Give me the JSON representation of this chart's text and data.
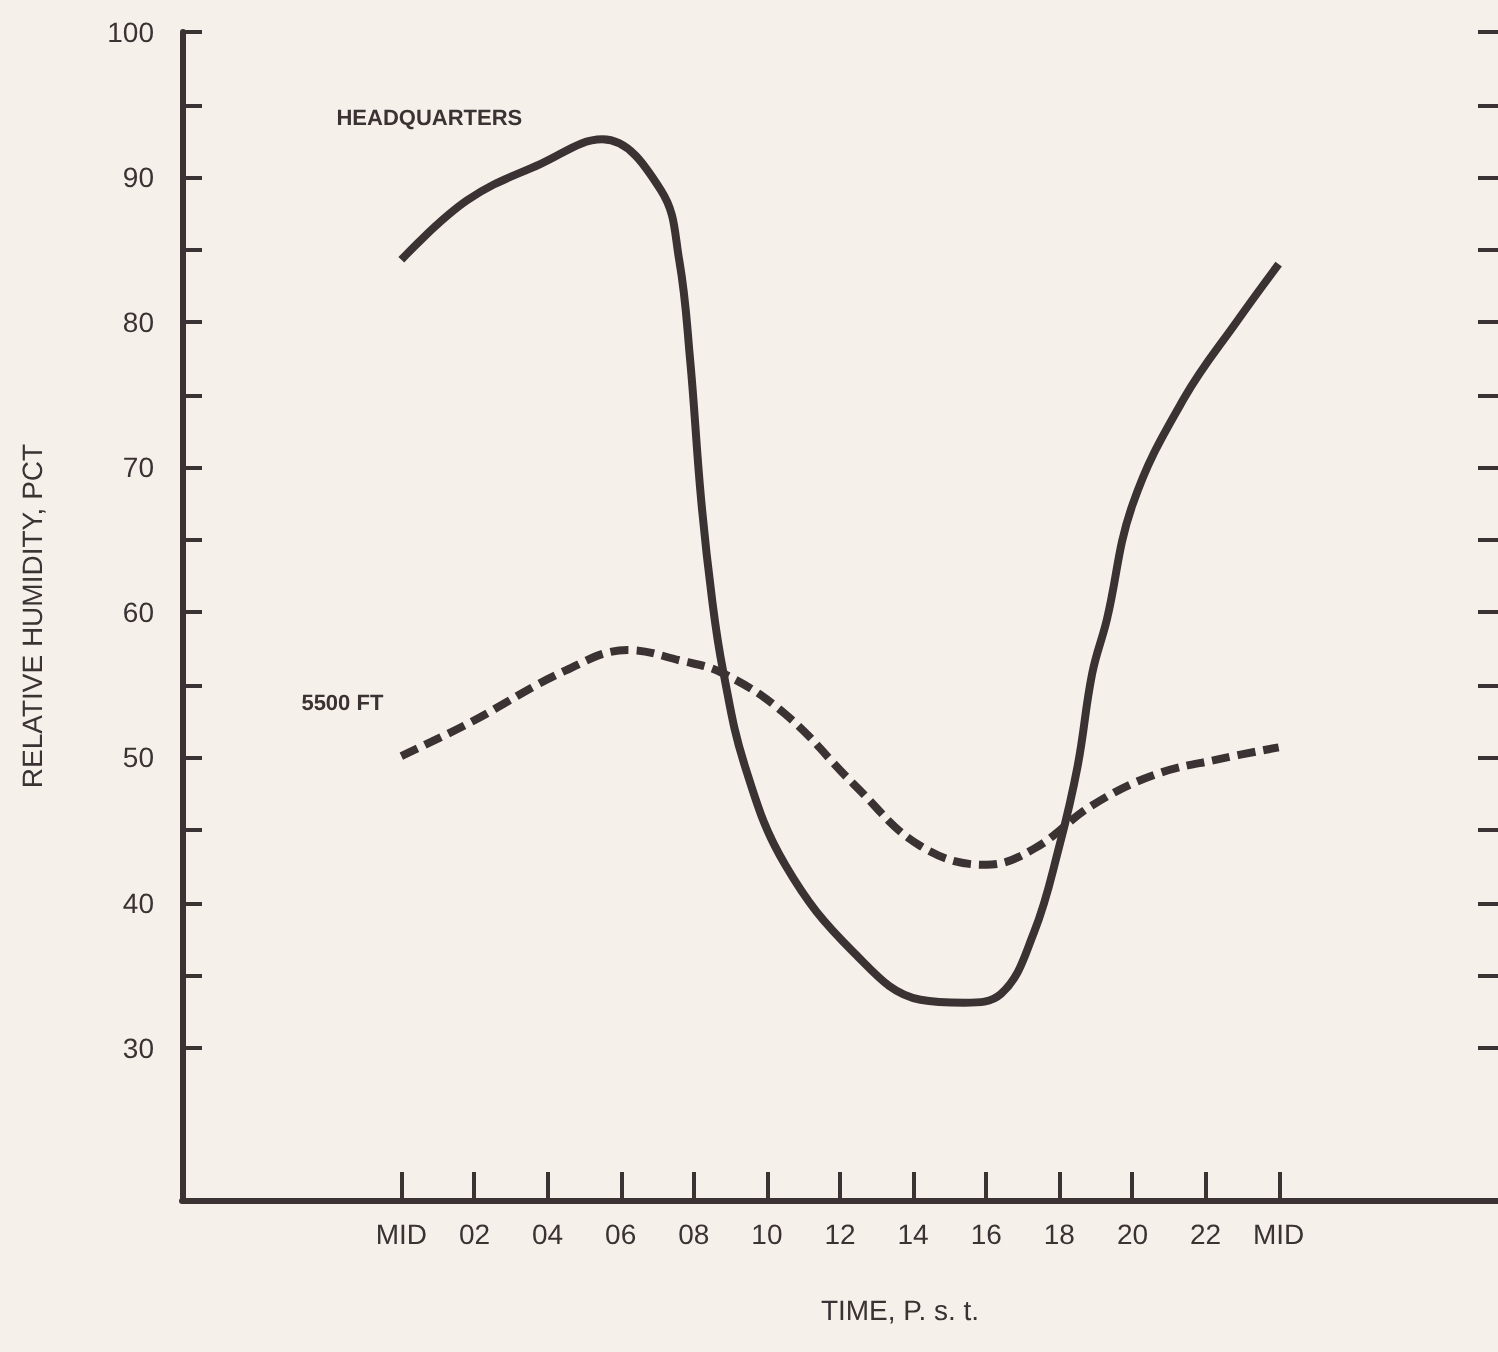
{
  "chart_data": {
    "type": "line",
    "xlabel": "TIME, P. s. t.",
    "ylabel": "RELATIVE HUMIDITY, PCT",
    "xlim": [
      -6,
      30
    ],
    "ylim": [
      19.5,
      100
    ],
    "xticks": [
      {
        "value": 0,
        "label": "MID"
      },
      {
        "value": 2,
        "label": "02"
      },
      {
        "value": 4,
        "label": "04"
      },
      {
        "value": 6,
        "label": "06"
      },
      {
        "value": 8,
        "label": "08"
      },
      {
        "value": 10,
        "label": "10"
      },
      {
        "value": 12,
        "label": "12"
      },
      {
        "value": 14,
        "label": "14"
      },
      {
        "value": 16,
        "label": "16"
      },
      {
        "value": 18,
        "label": "18"
      },
      {
        "value": 20,
        "label": "20"
      },
      {
        "value": 22,
        "label": "22"
      },
      {
        "value": 24,
        "label": "MID"
      }
    ],
    "yticks": [
      30,
      {
        "value": 35,
        "label": null
      },
      40,
      {
        "value": 45,
        "label": null
      },
      50,
      {
        "value": 55,
        "label": null
      },
      60,
      {
        "value": 65,
        "label": null
      },
      70,
      {
        "value": 75,
        "label": null
      },
      80,
      {
        "value": 85,
        "label": null
      },
      90,
      {
        "value": 95,
        "label": null
      },
      100
    ],
    "grid": false,
    "legend": false,
    "marker": "none",
    "series": [
      {
        "name": "HEADQUARTERS",
        "color": "#3a3233",
        "line_style": "solid",
        "x": [
          0,
          1.8,
          3.8,
          5.5,
          7.1,
          7.6,
          7.9,
          8.2,
          8.5,
          8.8,
          9.4,
          10.5,
          12.4,
          14.2,
          15.4,
          16.4,
          17.3,
          18,
          18.5,
          18.9,
          19.3,
          20,
          21.4,
          22.9,
          24
        ],
        "values": [
          84.3,
          88.4,
          90.9,
          92.6,
          89.1,
          84.3,
          77.4,
          67.8,
          60.9,
          56,
          49.4,
          42.6,
          36.5,
          33.3,
          33.1,
          33.7,
          37.9,
          43.9,
          49.4,
          55.8,
          59.5,
          67.4,
          74.7,
          80.2,
          84
        ]
      },
      {
        "name": "5500 FT",
        "color": "#3a3233",
        "line_style": "dashed",
        "x": [
          0,
          1.8,
          4.5,
          6.2,
          7.6,
          8.8,
          10.5,
          12.4,
          14.2,
          16,
          17.3,
          18.9,
          20.6,
          22.4,
          24
        ],
        "values": [
          50.1,
          52.3,
          56,
          57.4,
          56.7,
          55.8,
          53,
          48.1,
          43.9,
          42.6,
          43.7,
          46.7,
          48.8,
          49.9,
          50.7
        ]
      }
    ]
  }
}
